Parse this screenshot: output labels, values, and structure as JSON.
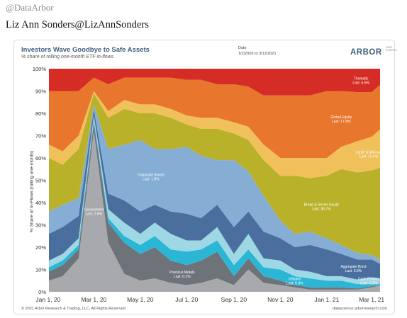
{
  "tweet": {
    "handle": "@DataArbor",
    "author": "Liz Ann Sonders@LizAnnSonders"
  },
  "card": {
    "date_label": "Date",
    "date_range": "1/2/2020 to 3/12/2021",
    "logo_main": "ARBOR",
    "logo_sub": "DATA SCIENCE",
    "footer_left": "© 2021 Arbor Research & Trading, LLC. All Rights Reserved",
    "footer_right": "datascience.arborresearch.com"
  },
  "chart_data": {
    "type": "area",
    "title": "Investors Wave Goodbye to Safe Assets",
    "subtitle": "% share of rolling one-month ETF in-flows",
    "ylabel": "% Share of In-Flows (rolling one-month)",
    "xlabel": "",
    "ylim": [
      0,
      100
    ],
    "yticks": [
      "0%",
      "10%",
      "20%",
      "30%",
      "40%",
      "50%",
      "60%",
      "70%",
      "80%",
      "90%",
      "100%"
    ],
    "x": [
      "2020-01-02",
      "2020-01-20",
      "2020-02-10",
      "2020-03-01",
      "2020-03-20",
      "2020-04-10",
      "2020-05-01",
      "2020-05-20",
      "2020-06-10",
      "2020-07-01",
      "2020-07-20",
      "2020-08-10",
      "2020-09-01",
      "2020-09-20",
      "2020-10-10",
      "2020-11-01",
      "2020-11-20",
      "2020-12-10",
      "2021-01-01",
      "2021-01-20",
      "2021-02-10",
      "2021-03-01",
      "2021-03-12"
    ],
    "xticks": [
      "Jan 1, 20",
      "Mar 1, 20",
      "May 1, 20",
      "Jul 1, 20",
      "Sep 1, 20",
      "Nov 1, 20",
      "Jan 1, 21",
      "Mar 1, 21"
    ],
    "xtick_dates": [
      "2020-01-01",
      "2020-03-01",
      "2020-05-01",
      "2020-07-01",
      "2020-09-01",
      "2020-11-01",
      "2021-01-01",
      "2021-03-01"
    ],
    "series": [
      {
        "name": "Government",
        "last": "Last: 2.6%",
        "color": "#a8a9ad",
        "values": [
          5,
          7,
          15,
          72,
          22,
          8,
          5,
          6,
          4,
          3,
          4,
          6,
          3,
          10,
          4,
          3,
          2,
          1,
          1,
          1,
          1,
          2,
          2.6
        ]
      },
      {
        "name": "Precious Metals",
        "last": "Last: 0.1%",
        "color": "#6e737a",
        "values": [
          4,
          5,
          4,
          4,
          9,
          14,
          12,
          14,
          10,
          9,
          10,
          12,
          4,
          5,
          3,
          2,
          1,
          1,
          1,
          1,
          0.5,
          0.5,
          0.1
        ]
      },
      {
        "name": "Inflation",
        "last": "Last: 0.4%",
        "color": "#2bb6d6",
        "values": [
          2,
          2,
          2,
          1,
          2,
          3,
          4,
          5,
          5,
          6,
          5,
          5,
          5,
          4,
          4,
          5,
          4,
          4,
          3,
          3,
          2,
          1,
          0.4
        ]
      },
      {
        "name": "Cash Proxies",
        "last": "Last: 2.2%",
        "color": "#9ed8e4",
        "values": [
          3,
          3,
          3,
          2,
          4,
          6,
          5,
          6,
          7,
          5,
          4,
          6,
          5,
          7,
          4,
          4,
          3,
          3,
          2,
          2,
          2,
          3,
          2.2
        ]
      },
      {
        "name": "Aggregate Bond",
        "last": "Last: 5.9%",
        "color": "#4a6f9e",
        "values": [
          12,
          12,
          10,
          3,
          7,
          10,
          10,
          8,
          10,
          12,
          10,
          10,
          12,
          10,
          12,
          10,
          10,
          12,
          12,
          10,
          9,
          8,
          5.9
        ]
      },
      {
        "name": "Corporate Bonds",
        "last": "Last: 1.8%",
        "color": "#86aed4",
        "values": [
          10,
          10,
          8,
          2,
          20,
          25,
          32,
          25,
          28,
          30,
          28,
          20,
          30,
          18,
          16,
          8,
          6,
          6,
          5,
          4,
          3,
          2,
          1.8
        ]
      },
      {
        "name": "Broad & Sector Equity",
        "last": "Last: 36.7%",
        "color": "#b9b12a",
        "values": [
          24,
          18,
          22,
          5,
          14,
          16,
          12,
          16,
          14,
          10,
          12,
          14,
          12,
          14,
          16,
          20,
          26,
          24,
          28,
          34,
          36,
          38,
          36.7
        ]
      },
      {
        "name": "Large & Mid-cap",
        "last": "Last: 15.4%",
        "color": "#f0c05a",
        "values": [
          6,
          6,
          6,
          1,
          3,
          4,
          4,
          4,
          4,
          4,
          5,
          5,
          5,
          6,
          7,
          8,
          8,
          9,
          8,
          10,
          14,
          15,
          15.4
        ]
      },
      {
        "name": "Global Equity",
        "last": "Last: 17.8%",
        "color": "#e8762c",
        "values": [
          24,
          27,
          20,
          6,
          12,
          10,
          12,
          12,
          14,
          16,
          17,
          15,
          17,
          18,
          22,
          28,
          28,
          28,
          30,
          25,
          22,
          20,
          17.8
        ]
      },
      {
        "name": "Thematic",
        "last": "Last: 6.5%",
        "color": "#d52d26",
        "values": [
          10,
          10,
          10,
          4,
          7,
          4,
          4,
          4,
          4,
          5,
          5,
          7,
          7,
          8,
          12,
          12,
          12,
          12,
          10,
          10,
          10.5,
          10.5,
          6.5
        ]
      }
    ],
    "grid": false,
    "legend": "inline labels"
  }
}
